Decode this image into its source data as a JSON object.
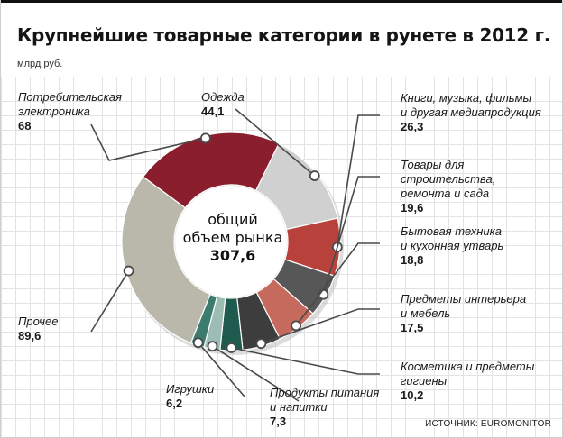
{
  "title": "Крупнейшие товарные категории в рунете в 2012 г.",
  "unit": "млрд руб.",
  "source": "ИСТОЧНИК: EUROMONITOR",
  "chart_data": {
    "type": "pie",
    "variant": "donut",
    "center": {
      "label": "общий\nобъем рынка",
      "value": "307,6"
    },
    "slices": [
      {
        "label": "Одежда",
        "value": 44.1,
        "value_text": "44,1",
        "color": "#d0d0d0"
      },
      {
        "label": "Книги, музыка, фильмы\nи другая медиапродукция",
        "value": 26.3,
        "value_text": "26,3",
        "color": "#b9413c"
      },
      {
        "label": "Товары для строительства,\nремонта и сада",
        "value": 19.6,
        "value_text": "19,6",
        "color": "#575757"
      },
      {
        "label": "Бытовая техника\nи кухонная утварь",
        "value": 18.8,
        "value_text": "18,8",
        "color": "#c76a5e"
      },
      {
        "label": "Предметы интерьера\nи мебель",
        "value": 17.5,
        "value_text": "17,5",
        "color": "#3d3d3d"
      },
      {
        "label": "Косметика и предметы\nгигиены",
        "value": 10.2,
        "value_text": "10,2",
        "color": "#1e5a4e"
      },
      {
        "label": "Продукты питания\nи напитки",
        "value": 7.3,
        "value_text": "7,3",
        "color": "#9dbcb4"
      },
      {
        "label": "Игрушки",
        "value": 6.2,
        "value_text": "6,2",
        "color": "#3c7c6f"
      },
      {
        "label": "Прочее",
        "value": 89.6,
        "value_text": "89,6",
        "color": "#b9b8ab"
      },
      {
        "label": "Потребительская\nэлектроника",
        "value": 68,
        "value_text": "68",
        "color": "#8a1e2c"
      }
    ]
  }
}
